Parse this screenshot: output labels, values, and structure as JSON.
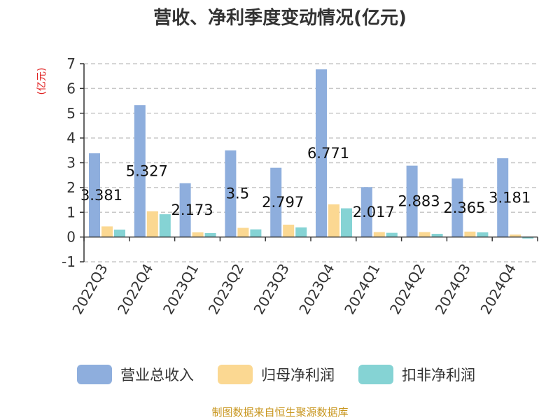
{
  "chart_data": {
    "type": "bar",
    "title": "营收、净利季度变动情况(亿元)",
    "y_unit": "(亿元)",
    "ylim": [
      -1,
      7
    ],
    "yticks": [
      "-1",
      "0",
      "1",
      "2",
      "3",
      "4",
      "5",
      "6",
      "7"
    ],
    "categories": [
      "2022Q3",
      "2022Q4",
      "2023Q1",
      "2023Q2",
      "2023Q3",
      "2023Q4",
      "2024Q1",
      "2024Q2",
      "2024Q3",
      "2024Q4"
    ],
    "series": [
      {
        "name": "营业总收入",
        "color": "#8eaedd",
        "values": [
          3.381,
          5.327,
          2.173,
          3.5,
          2.797,
          6.771,
          2.017,
          2.883,
          2.365,
          3.181
        ]
      },
      {
        "name": "归母净利润",
        "color": "#fbd892",
        "values": [
          0.43,
          1.04,
          0.19,
          0.37,
          0.5,
          1.32,
          0.2,
          0.2,
          0.22,
          0.1
        ]
      },
      {
        "name": "扣非净利润",
        "color": "#85d3d4",
        "values": [
          0.3,
          0.92,
          0.16,
          0.31,
          0.39,
          1.16,
          0.17,
          0.13,
          0.19,
          -0.06
        ]
      }
    ],
    "data_labels": [
      "3.381",
      "5.327",
      "2.173",
      "3.5",
      "2.797",
      "6.771",
      "2.017",
      "2.883",
      "2.365",
      "3.181"
    ],
    "grid": true,
    "legend_position": "bottom"
  },
  "source": "制图数据来自恒生聚源数据库"
}
